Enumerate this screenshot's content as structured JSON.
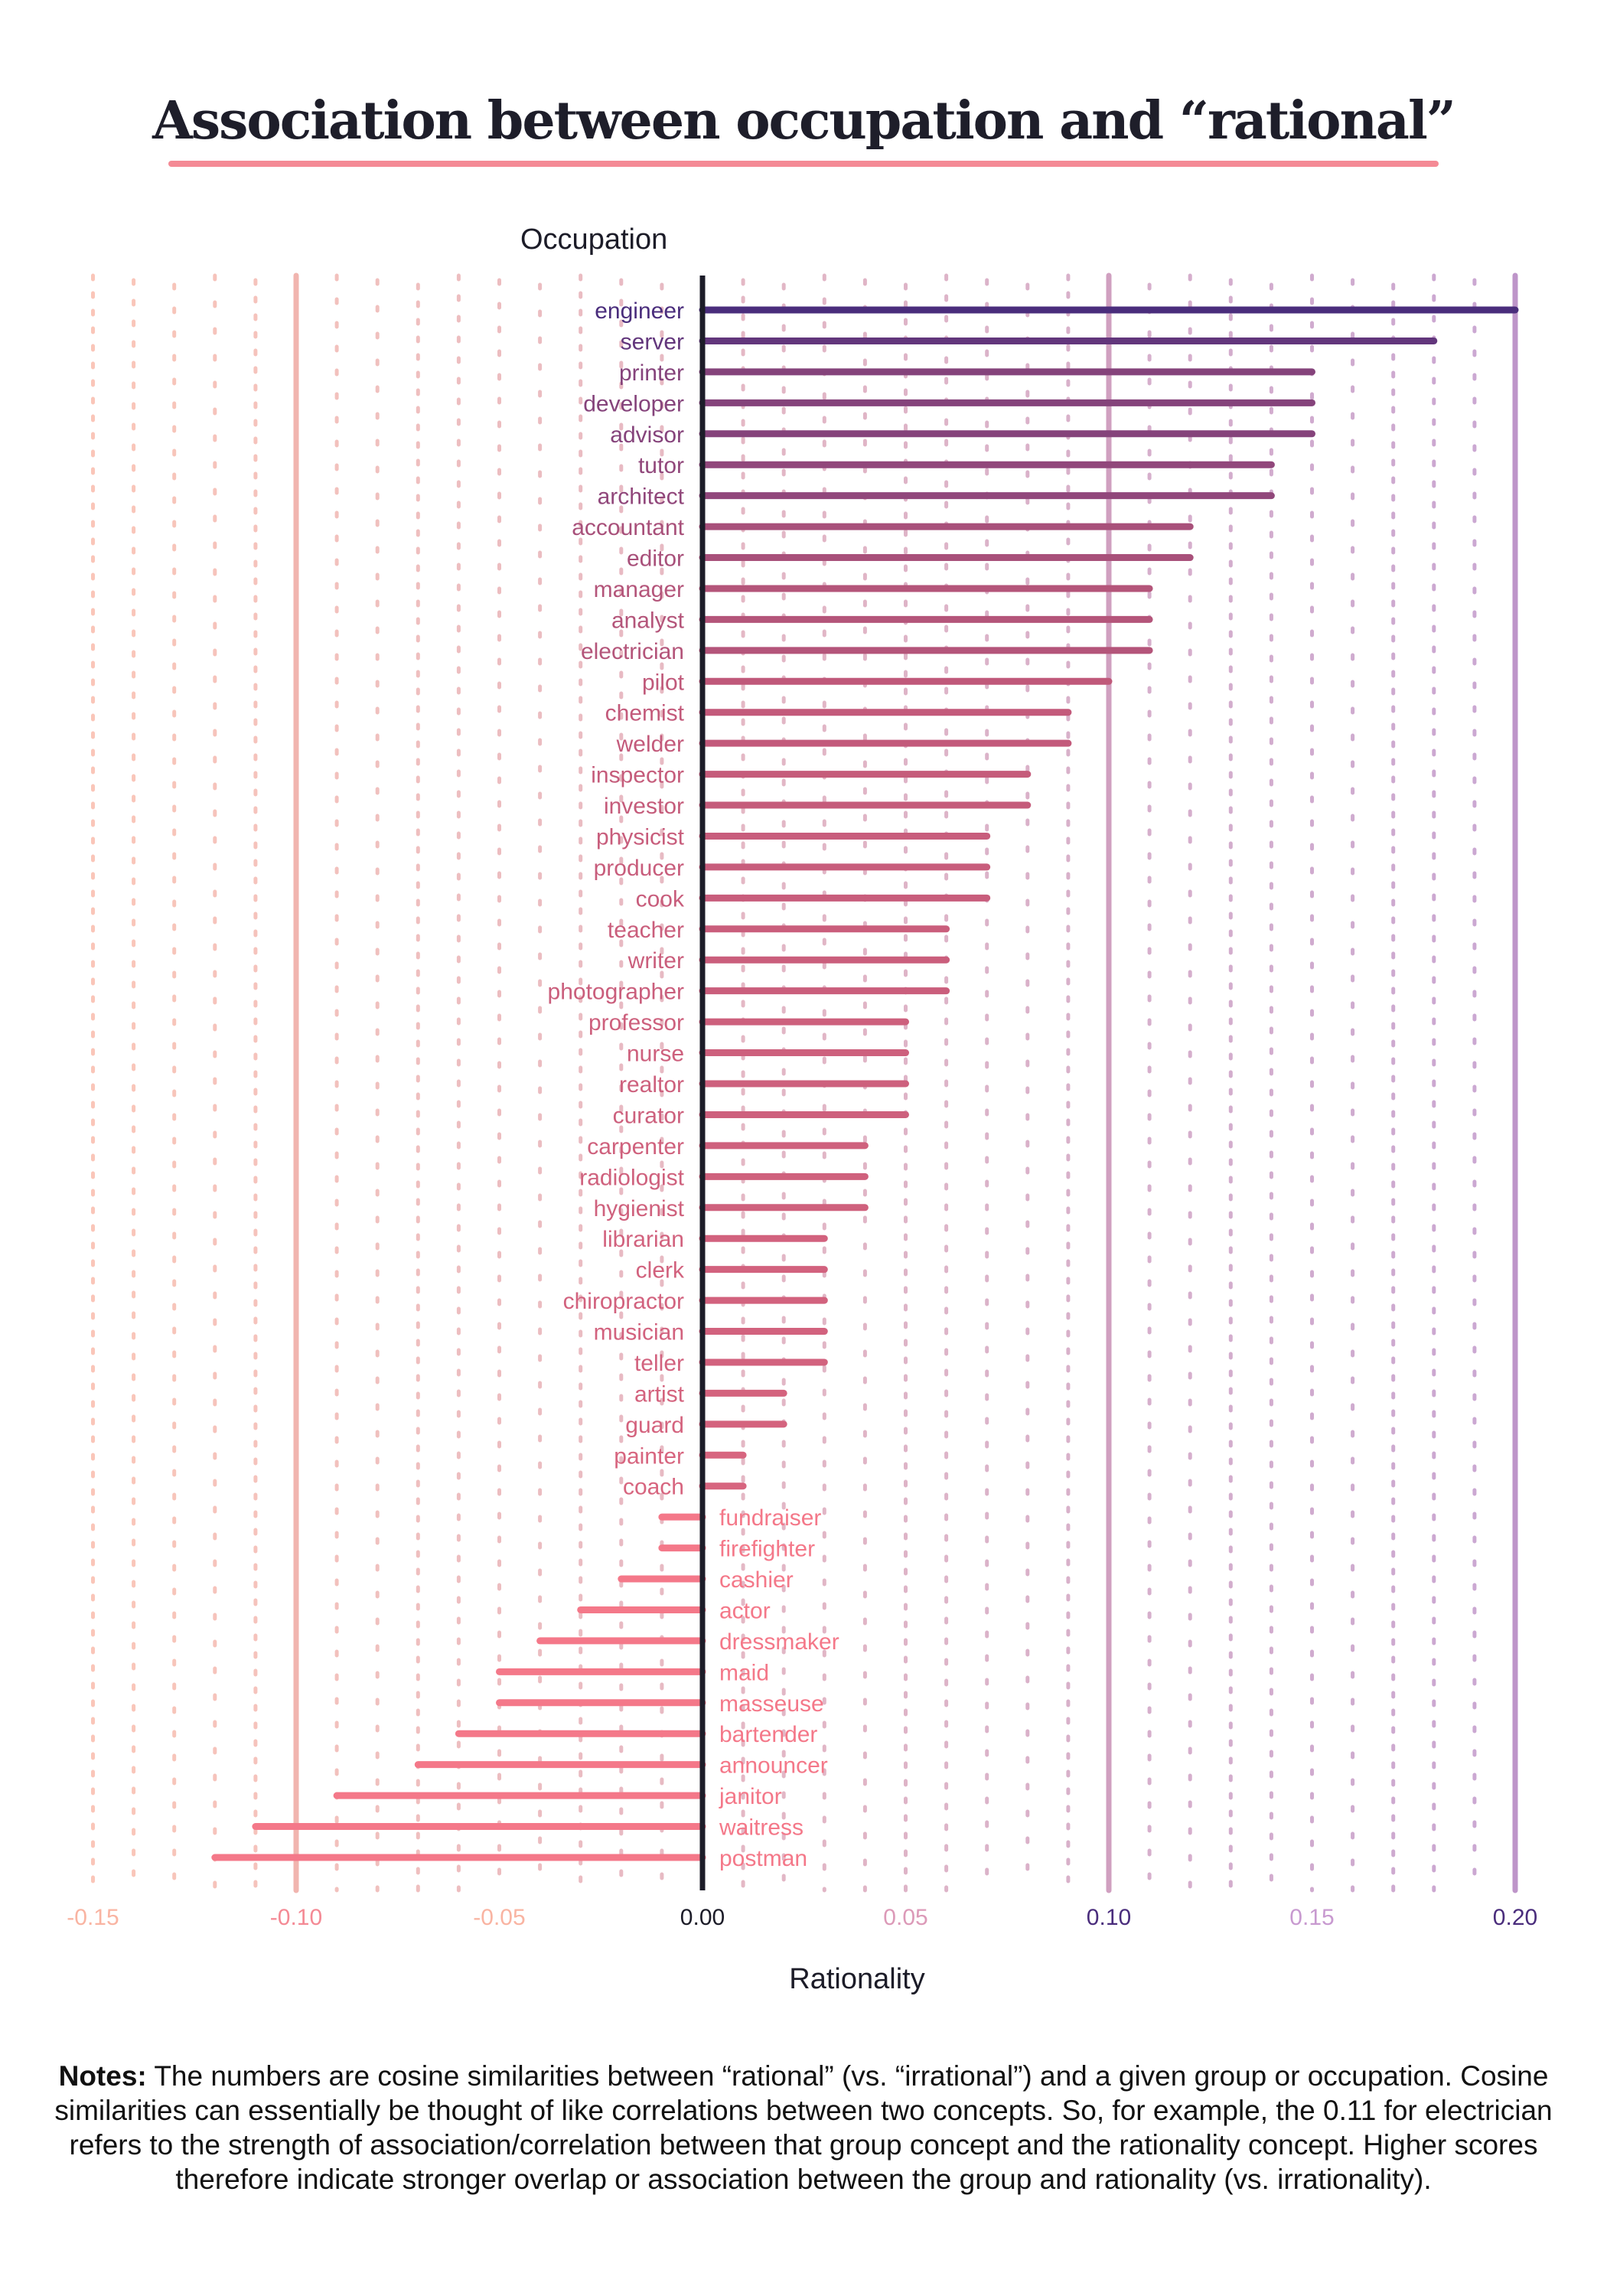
{
  "title": "Association between occupation and “rational”",
  "notes": {
    "label": "Notes:",
    "text": " The numbers are cosine similarities between “rational” (vs. “irrational”) and a given group or occupation. Cosine similarities can essentially be thought of like correlations between two concepts. So, for example, the 0.11 for electrician refers to the strength of association/correlation between that group concept and the rationality concept. Higher scores therefore indicate stronger overlap or association between the group and rationality (vs. irrationality)."
  },
  "chart_data": {
    "type": "bar",
    "orientation": "horizontal",
    "title": "Association between occupation and “rational”",
    "xlabel": "Rationality",
    "ylabel": "Occupation",
    "xlim": [
      -0.15,
      0.2
    ],
    "xticks": [
      "-0.15",
      "-0.10",
      "-0.05",
      "0.00",
      "0.05",
      "0.10",
      "0.15",
      "0.20"
    ],
    "colors": {
      "negative": "#f47889",
      "mid": "#c0597a",
      "positive": "#4a2d7c",
      "grid_left": "#f9b4a2",
      "grid_right": "#b88ac4"
    },
    "categories": [
      "engineer",
      "server",
      "printer",
      "developer",
      "advisor",
      "tutor",
      "architect",
      "accountant",
      "editor",
      "manager",
      "analyst",
      "electrician",
      "pilot",
      "chemist",
      "welder",
      "inspector",
      "investor",
      "physicist",
      "producer",
      "cook",
      "teacher",
      "writer",
      "photographer",
      "professor",
      "nurse",
      "realtor",
      "curator",
      "carpenter",
      "radiologist",
      "hygienist",
      "librarian",
      "clerk",
      "chiropractor",
      "musician",
      "teller",
      "artist",
      "guard",
      "painter",
      "coach",
      "fundraiser",
      "firefighter",
      "cashier",
      "actor",
      "dressmaker",
      "maid",
      "masseuse",
      "bartender",
      "announcer",
      "janitor",
      "waitress",
      "postman"
    ],
    "values": [
      0.2,
      0.18,
      0.15,
      0.15,
      0.15,
      0.14,
      0.14,
      0.12,
      0.12,
      0.11,
      0.11,
      0.11,
      0.1,
      0.09,
      0.09,
      0.08,
      0.08,
      0.07,
      0.07,
      0.07,
      0.06,
      0.06,
      0.06,
      0.05,
      0.05,
      0.05,
      0.05,
      0.04,
      0.04,
      0.04,
      0.03,
      0.03,
      0.03,
      0.03,
      0.03,
      0.02,
      0.02,
      0.01,
      0.01,
      -0.01,
      -0.01,
      -0.02,
      -0.03,
      -0.04,
      -0.05,
      -0.05,
      -0.06,
      -0.07,
      -0.09,
      -0.11,
      -0.12
    ]
  }
}
